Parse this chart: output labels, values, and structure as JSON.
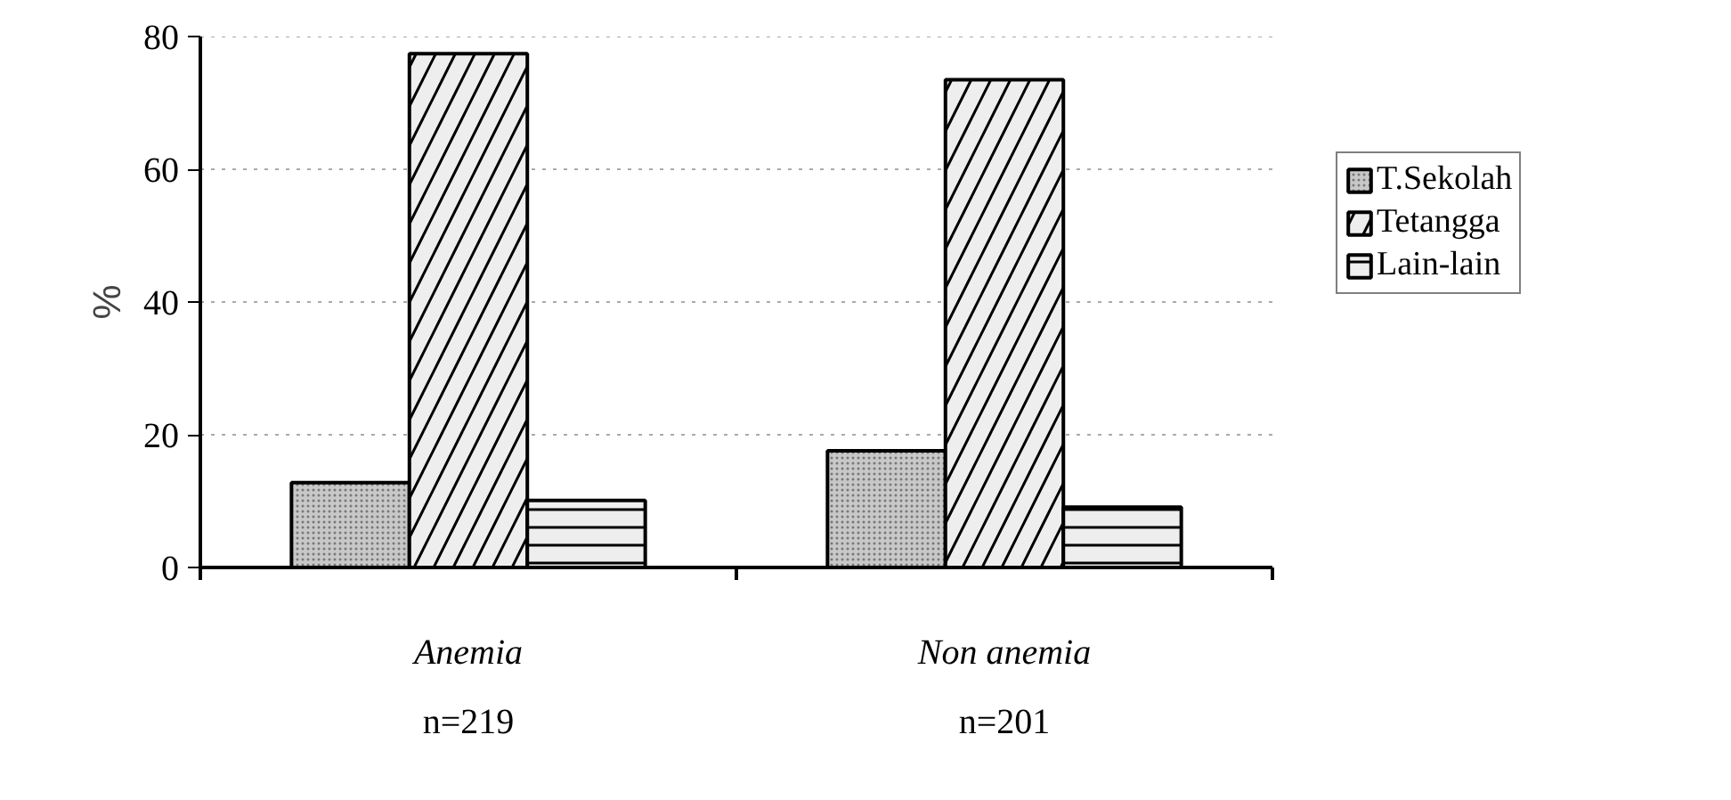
{
  "chart_data": {
    "type": "bar",
    "categories": [
      "Anemia",
      "Non anemia"
    ],
    "ylabel": "%",
    "series": [
      {
        "name": "T.Sekolah",
        "color": "#c8c8c8",
        "values": [
          12.8,
          17.6
        ]
      },
      {
        "name": "Tetangga",
        "color": "#eeeeee",
        "values": [
          77.4,
          73.5
        ]
      },
      {
        "name": "Lain-lain",
        "color": "#eeeeee",
        "values": [
          10.1,
          9.1
        ]
      }
    ],
    "ylim": [
      0,
      80
    ],
    "yticks": [
      0,
      20,
      40,
      60,
      80
    ],
    "grid": "y",
    "legend": "right",
    "annotations": [
      "n=219",
      "n=201"
    ]
  }
}
